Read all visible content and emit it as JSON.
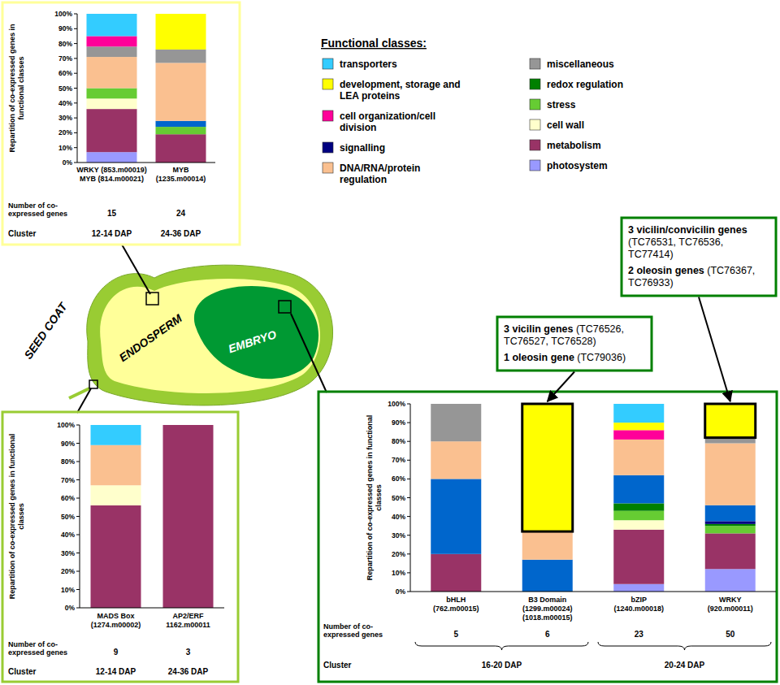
{
  "legend_title": "Functional classes:",
  "diagram": {
    "seed_coat": "SEED COAT",
    "endosperm": "ENDOSPERM",
    "embryo": "EMBRYO"
  },
  "chart_data": [
    {
      "type": "bar",
      "stacked": true,
      "y_label": "Repartition of co-expressed genes in functional classes",
      "categories": [
        "WRKY (853.m00019)\nMYB (814.m00021)",
        "MYB\n(1235.m00014)"
      ],
      "ylim": [
        0,
        100
      ],
      "yticks": [
        {
          "value": 0,
          "label": "0%"
        },
        {
          "value": 10,
          "label": "10%"
        },
        {
          "value": 20,
          "label": "20%"
        },
        {
          "value": 30,
          "label": "30%"
        },
        {
          "value": 40,
          "label": "40%"
        },
        {
          "value": 50,
          "label": "50%"
        },
        {
          "value": 60,
          "label": "60%"
        },
        {
          "value": 70,
          "label": "70%"
        },
        {
          "value": 80,
          "label": "80%"
        },
        {
          "value": 90,
          "label": "90%"
        },
        {
          "value": 100,
          "label": "100%"
        }
      ],
      "series": [
        {
          "name": "transporters",
          "color": "#33ccff",
          "values": [
            15,
            0
          ]
        },
        {
          "name": "development, storage and LEA proteins",
          "color": "#ffff00",
          "values": [
            0,
            24
          ]
        },
        {
          "name": "cell organization/cell division",
          "color": "#ff0099",
          "values": [
            7,
            0
          ]
        },
        {
          "name": "signalling",
          "color": "#000080",
          "values": [
            0,
            0
          ]
        },
        {
          "name": "DNA/RNA/protein regulation",
          "color": "#fac090",
          "values": [
            21,
            39
          ]
        },
        {
          "name": "miscellaneous",
          "color": "#969696",
          "values": [
            7,
            9
          ]
        },
        {
          "name": "redox regulation",
          "color": "#008000",
          "values": [
            0,
            0
          ]
        },
        {
          "name": "stress",
          "color": "#66cc33",
          "values": [
            7,
            5
          ]
        },
        {
          "name": "cell wall",
          "color": "#ffffcc",
          "values": [
            7,
            0
          ]
        },
        {
          "name": "metabolism",
          "color": "#993366",
          "values": [
            29,
            19
          ]
        },
        {
          "name": "photosystem",
          "color": "#9999ff",
          "values": [
            7,
            0
          ]
        },
        {
          "name": null,
          "color": "#0066cc",
          "values": [
            0,
            4
          ]
        }
      ],
      "gene_count_label": "Number of co-expressed genes",
      "gene_counts": [
        15,
        24
      ],
      "cluster_label": "Cluster",
      "clusters": [
        "12-14 DAP",
        "24-36 DAP"
      ]
    },
    {
      "type": "bar",
      "stacked": true,
      "y_label": "Repartition of co-expressed genes in functional classes",
      "categories": [
        "MADS Box\n(1274.m00002)",
        "AP2/ERF\n1162.m00011"
      ],
      "ylim": [
        0,
        100
      ],
      "yticks": [
        {
          "value": 0,
          "label": "0%"
        },
        {
          "value": 10,
          "label": "10%"
        },
        {
          "value": 20,
          "label": "20%"
        },
        {
          "value": 30,
          "label": "30%"
        },
        {
          "value": 40,
          "label": "40%"
        },
        {
          "value": 50,
          "label": "50%"
        },
        {
          "value": 60,
          "label": "60%"
        },
        {
          "value": 70,
          "label": "70%"
        },
        {
          "value": 80,
          "label": "80%"
        },
        {
          "value": 90,
          "label": "90%"
        },
        {
          "value": 100,
          "label": "100%"
        }
      ],
      "series": [
        {
          "name": "transporters",
          "color": "#33ccff",
          "values": [
            11,
            0
          ]
        },
        {
          "name": "development, storage and LEA proteins",
          "color": "#ffff00",
          "values": [
            0,
            0
          ]
        },
        {
          "name": "cell organization/cell division",
          "color": "#ff0099",
          "values": [
            0,
            0
          ]
        },
        {
          "name": "signalling",
          "color": "#000080",
          "values": [
            0,
            0
          ]
        },
        {
          "name": "DNA/RNA/protein regulation",
          "color": "#fac090",
          "values": [
            22,
            0
          ]
        },
        {
          "name": "miscellaneous",
          "color": "#969696",
          "values": [
            0,
            0
          ]
        },
        {
          "name": "redox regulation",
          "color": "#008000",
          "values": [
            0,
            0
          ]
        },
        {
          "name": "stress",
          "color": "#66cc33",
          "values": [
            0,
            0
          ]
        },
        {
          "name": "cell wall",
          "color": "#ffffcc",
          "values": [
            11,
            0
          ]
        },
        {
          "name": "metabolism",
          "color": "#993366",
          "values": [
            56,
            100
          ]
        },
        {
          "name": "photosystem",
          "color": "#9999ff",
          "values": [
            0,
            0
          ]
        },
        {
          "name": null,
          "color": "#0066cc",
          "values": [
            0,
            0
          ]
        }
      ],
      "gene_count_label": "Number of co-expressed genes",
      "gene_counts": [
        9,
        3
      ],
      "cluster_label": "Cluster",
      "clusters": [
        "12-14 DAP",
        "24-36 DAP"
      ]
    },
    {
      "type": "bar",
      "stacked": true,
      "y_label": "Repartition of co-expressed genes in functional classes",
      "categories": [
        "bHLH\n(762.m00015)",
        "B3 Domain\n(1299.m00024)\n(1018.m00015)",
        "bZIP\n(1240.m00018)",
        "WRKY\n(920.m00011)"
      ],
      "ylim": [
        0,
        100
      ],
      "yticks": [
        {
          "value": 0,
          "label": "0%"
        },
        {
          "value": 10,
          "label": "10%"
        },
        {
          "value": 20,
          "label": "20%"
        },
        {
          "value": 30,
          "label": "30%"
        },
        {
          "value": 40,
          "label": "40%"
        },
        {
          "value": 50,
          "label": "50%"
        },
        {
          "value": 60,
          "label": "60%"
        },
        {
          "value": 70,
          "label": "70%"
        },
        {
          "value": 80,
          "label": "80%"
        },
        {
          "value": 90,
          "label": "90%"
        },
        {
          "value": 100,
          "label": "100%"
        }
      ],
      "series": [
        {
          "name": "transporters",
          "color": "#33ccff",
          "values": [
            0,
            0,
            10,
            0
          ]
        },
        {
          "name": "development, storage and LEA proteins",
          "color": "#ffff00",
          "values": [
            0,
            68,
            4,
            18
          ]
        },
        {
          "name": "cell organization/cell division",
          "color": "#ff0099",
          "values": [
            0,
            0,
            5,
            0
          ]
        },
        {
          "name": "signalling",
          "color": "#000080",
          "values": [
            0,
            0,
            0,
            1.5
          ]
        },
        {
          "name": "DNA/RNA/protein regulation",
          "color": "#fac090",
          "values": [
            20,
            15,
            19,
            33
          ]
        },
        {
          "name": "miscellaneous",
          "color": "#969696",
          "values": [
            20,
            0,
            0,
            3
          ]
        },
        {
          "name": "redox regulation",
          "color": "#008000",
          "values": [
            0,
            0,
            4,
            1
          ]
        },
        {
          "name": "stress",
          "color": "#66cc33",
          "values": [
            0,
            0,
            5,
            4
          ]
        },
        {
          "name": "cell wall",
          "color": "#ffffcc",
          "values": [
            0,
            0,
            5,
            0
          ]
        },
        {
          "name": "metabolism",
          "color": "#993366",
          "values": [
            20,
            0,
            29,
            19
          ]
        },
        {
          "name": "photosystem",
          "color": "#9999ff",
          "values": [
            0,
            0,
            4,
            12
          ]
        },
        {
          "name": null,
          "color": "#0066cc",
          "values": [
            40,
            17,
            15,
            8.5
          ]
        }
      ],
      "gene_count_label": "Number of co-expressed genes",
      "gene_counts": [
        5,
        6,
        23,
        50
      ],
      "cluster_label": "Cluster",
      "clusters": [
        "16-20 DAP",
        "16-20 DAP",
        "20-24 DAP",
        "20-24 DAP"
      ],
      "annotations": [
        {
          "category": 1,
          "series": 1,
          "items": [
            {
              "head": "3 vicilin genes",
              "detail": "(TC76526, TC76527, TC76528)"
            },
            {
              "head": "1 oleosin gene",
              "detail": "(TC79036)"
            }
          ]
        },
        {
          "category": 3,
          "series": 1,
          "items": [
            {
              "head": "3 vicilin/convicilin genes",
              "detail": "(TC76531, TC76536, TC77414)"
            },
            {
              "head": "2 oleosin genes",
              "detail": "(TC76367, TC76933)"
            }
          ]
        }
      ]
    }
  ]
}
